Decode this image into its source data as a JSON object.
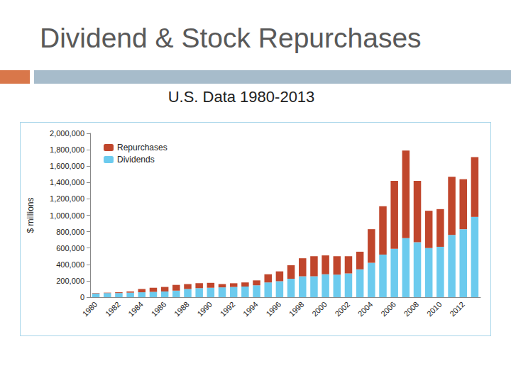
{
  "chart_data": {
    "type": "bar",
    "title": "Dividend & Stock Repurchases",
    "subtitle": "U.S. Data 1980-2013",
    "y_label": "$ millions",
    "categories": [
      "1980",
      null,
      "1982",
      null,
      "1984",
      null,
      "1986",
      null,
      "1988",
      null,
      "1990",
      null,
      "1992",
      null,
      "1994",
      null,
      "1996",
      null,
      "1998",
      null,
      "2000",
      null,
      "2002",
      null,
      "2004",
      null,
      "2006",
      null,
      "2008",
      null,
      "2010",
      null,
      "2012",
      null
    ],
    "series": [
      {
        "name": "Dividends",
        "color": "#6ccbee",
        "values": [
          45000,
          50000,
          50000,
          55000,
          60000,
          65000,
          70000,
          80000,
          100000,
          110000,
          115000,
          120000,
          125000,
          130000,
          145000,
          180000,
          195000,
          225000,
          255000,
          255000,
          280000,
          275000,
          290000,
          340000,
          420000,
          520000,
          590000,
          720000,
          670000,
          600000,
          615000,
          760000,
          830000,
          980000
        ]
      },
      {
        "name": "Repurchases",
        "color": "#c0462c",
        "values": [
          5000,
          5000,
          10000,
          15000,
          40000,
          50000,
          55000,
          70000,
          60000,
          60000,
          60000,
          40000,
          45000,
          50000,
          60000,
          100000,
          120000,
          165000,
          220000,
          245000,
          230000,
          225000,
          210000,
          215000,
          410000,
          590000,
          830000,
          1070000,
          750000,
          455000,
          460000,
          710000,
          610000,
          730000
        ]
      }
    ],
    "stacked": true,
    "ylim": [
      0,
      2000000
    ],
    "yticks": [
      0,
      {
        "value": 200000,
        "label": "200,000"
      },
      {
        "value": 400000,
        "label": "400,000"
      },
      {
        "value": 600000,
        "label": "600,000"
      },
      {
        "value": 800000,
        "label": "800,000"
      },
      {
        "value": 1000000,
        "label": "1,000,000"
      },
      {
        "value": 1200000,
        "label": "1,200,000"
      },
      {
        "value": 1400000,
        "label": "1,400,000"
      },
      {
        "value": 1600000,
        "label": "1,600,000"
      },
      {
        "value": 1800000,
        "label": "1,800,000"
      },
      {
        "value": 2000000,
        "label": "2,000,000"
      }
    ],
    "grid": false,
    "legend": "upper left"
  }
}
